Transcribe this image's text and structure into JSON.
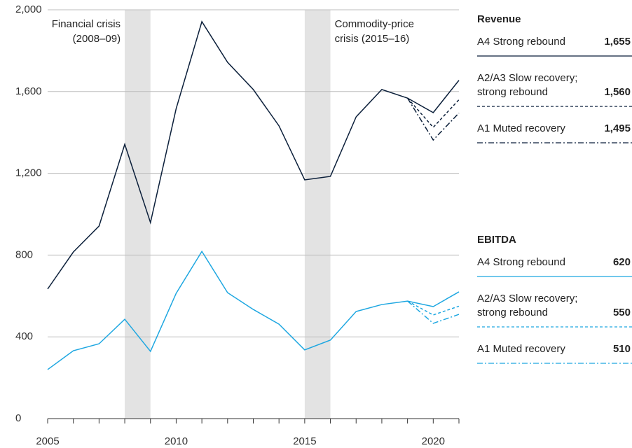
{
  "chart_data": {
    "type": "line",
    "x": [
      2005,
      2006,
      2007,
      2008,
      2009,
      2010,
      2011,
      2012,
      2013,
      2014,
      2015,
      2016,
      2017,
      2018,
      2019,
      2020,
      2021
    ],
    "xlim": [
      2005,
      2021
    ],
    "xticks": [
      2005,
      2010,
      2015,
      2020
    ],
    "xminorticks": [
      2005,
      2006,
      2007,
      2008,
      2009,
      2010,
      2011,
      2012,
      2013,
      2014,
      2015,
      2016,
      2017,
      2018,
      2019,
      2020,
      2021
    ],
    "ylim": [
      0,
      2000
    ],
    "yticks": [
      0,
      400,
      800,
      {
        "value": 1200,
        "label": "1,200"
      },
      {
        "value": 1600,
        "label": "1,600"
      },
      {
        "value": 2000,
        "label": "2,000"
      }
    ],
    "grid": true,
    "shaded": [
      {
        "from": 2008,
        "to": 2009,
        "label": [
          "Financial crisis",
          "(2008–09)"
        ],
        "color": "#e3e3e3"
      },
      {
        "from": 2015,
        "to": 2016,
        "label": [
          "Commodity-price",
          "crisis (2015–16)"
        ],
        "color": "#e3e3e3"
      }
    ],
    "groups": [
      "Revenue",
      "EBITDA"
    ],
    "series": [
      {
        "group": 0,
        "name": "A4 Strong rebound",
        "end_label": "1,655",
        "color": "#0b1f3a",
        "dash": "solid",
        "values": [
          634,
          815,
          942,
          1342,
          959,
          1517,
          1942,
          1743,
          1610,
          1432,
          1168,
          1185,
          1476,
          1610,
          1568,
          1497,
          1655
        ]
      },
      {
        "group": 0,
        "name": "A2/A3 Slow recovery; strong rebound",
        "end_label": "1,560",
        "color": "#0b1f3a",
        "dash": "dashed",
        "values": [
          null,
          null,
          null,
          null,
          null,
          null,
          null,
          null,
          null,
          null,
          null,
          null,
          null,
          null,
          1568,
          1425,
          1560
        ]
      },
      {
        "group": 0,
        "name": "A1 Muted recovery",
        "end_label": "1,495",
        "color": "#0b1f3a",
        "dash": "dashdot",
        "values": [
          null,
          null,
          null,
          null,
          null,
          null,
          null,
          null,
          null,
          null,
          null,
          null,
          null,
          null,
          1568,
          1363,
          1495
        ]
      },
      {
        "group": 1,
        "name": "A4 Strong rebound",
        "end_label": "620",
        "color": "#1ea7e1",
        "dash": "solid",
        "values": [
          240,
          332,
          366,
          486,
          329,
          613,
          818,
          616,
          534,
          462,
          336,
          384,
          524,
          558,
          575,
          548,
          620
        ]
      },
      {
        "group": 1,
        "name": "A2/A3 Slow recovery; strong rebound",
        "end_label": "550",
        "color": "#1ea7e1",
        "dash": "dashed",
        "values": [
          null,
          null,
          null,
          null,
          null,
          null,
          null,
          null,
          null,
          null,
          null,
          null,
          null,
          null,
          575,
          507,
          550
        ]
      },
      {
        "group": 1,
        "name": "A1 Muted recovery",
        "end_label": "510",
        "color": "#1ea7e1",
        "dash": "dashdot",
        "values": [
          null,
          null,
          null,
          null,
          null,
          null,
          null,
          null,
          null,
          null,
          null,
          null,
          null,
          null,
          575,
          466,
          510
        ]
      }
    ]
  }
}
